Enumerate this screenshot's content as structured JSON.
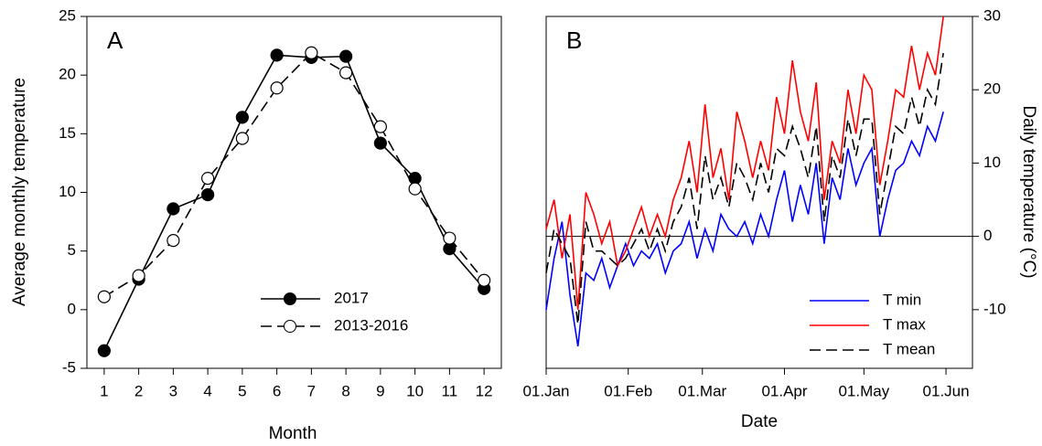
{
  "chart_data": [
    {
      "type": "line",
      "annotation": "A",
      "xlabel": "Month",
      "ylabel": "Average monthly temperature",
      "x": [
        1,
        2,
        3,
        4,
        5,
        6,
        7,
        8,
        9,
        10,
        11,
        12
      ],
      "xlim": [
        0.5,
        12.5
      ],
      "xticks": [
        1,
        2,
        3,
        4,
        5,
        6,
        7,
        8,
        9,
        10,
        11,
        12
      ],
      "ylim": [
        -5,
        25
      ],
      "yticks": [
        -5,
        0,
        5,
        10,
        15,
        20,
        25
      ],
      "legend": "lower center",
      "series": [
        {
          "name": "2017",
          "color": "#000000",
          "linestyle": "solid",
          "marker": "filled-circle",
          "values": [
            -3.5,
            2.6,
            8.6,
            9.8,
            16.4,
            21.7,
            21.5,
            21.6,
            14.2,
            11.2,
            5.2,
            1.8
          ]
        },
        {
          "name": "2013-2016",
          "color": "#000000",
          "linestyle": "dashed",
          "marker": "open-circle",
          "values": [
            1.1,
            2.9,
            5.9,
            11.2,
            14.6,
            18.9,
            21.9,
            20.2,
            15.6,
            10.3,
            6.1,
            2.5
          ]
        }
      ]
    },
    {
      "type": "line",
      "annotation": "B",
      "xlabel": "Date",
      "y2label": "Daily temperature (°C)",
      "x": [
        1,
        4,
        7,
        10,
        13,
        16,
        19,
        22,
        25,
        28,
        31,
        34,
        37,
        40,
        43,
        46,
        49,
        52,
        55,
        58,
        61,
        64,
        67,
        70,
        73,
        76,
        79,
        82,
        85,
        88,
        91,
        94,
        97,
        100,
        103,
        106,
        109,
        112,
        115,
        118,
        121,
        124,
        127,
        130,
        133,
        136,
        139,
        142,
        145,
        148,
        151
      ],
      "xlim": [
        1,
        162
      ],
      "xticks": [
        {
          "value": 1,
          "label": "01.Jan"
        },
        {
          "value": 32,
          "label": "01.Feb"
        },
        {
          "value": 60,
          "label": "01.Mar"
        },
        {
          "value": 91,
          "label": "01.Apr"
        },
        {
          "value": 121,
          "label": "01.May"
        },
        {
          "value": 152,
          "label": "01.Jun"
        }
      ],
      "y2lim": [
        -18,
        30
      ],
      "y2ticks": [
        -10,
        0,
        10,
        20,
        30
      ],
      "zero_line": true,
      "legend": "lower right",
      "series": [
        {
          "name": "T min",
          "color": "#0000ff",
          "linestyle": "solid",
          "axis": "y2",
          "values": [
            -10,
            -3,
            2,
            -8,
            -15,
            -5,
            -6,
            -3,
            -7,
            -4,
            -1,
            -4,
            -2,
            -3,
            -1,
            -5,
            -2,
            -1,
            2,
            -3,
            1,
            -2,
            3,
            1,
            0,
            2,
            -1,
            3,
            0,
            5,
            9,
            2,
            7,
            3,
            10,
            -1,
            8,
            5,
            12,
            7,
            10,
            12,
            0,
            5,
            9,
            10,
            13,
            11,
            15,
            13,
            17
          ]
        },
        {
          "name": "T max",
          "color": "#ff0000",
          "linestyle": "solid",
          "axis": "y2",
          "values": [
            1,
            5,
            -3,
            3,
            -10,
            6,
            3,
            -1,
            2,
            -4,
            -2,
            1,
            4,
            0,
            3,
            0,
            5,
            8,
            13,
            6,
            18,
            8,
            12,
            5,
            17,
            13,
            8,
            13,
            9,
            19,
            14,
            24,
            17,
            13,
            21,
            5,
            13,
            10,
            20,
            14,
            22,
            20,
            7,
            13,
            20,
            19,
            26,
            20,
            25,
            22,
            30
          ]
        },
        {
          "name": "T mean",
          "color": "#000000",
          "linestyle": "dashed",
          "axis": "y2",
          "values": [
            -5,
            1,
            -1,
            -3,
            -12,
            2,
            -2,
            -2,
            -3,
            -4,
            -3,
            -1,
            1,
            -2,
            1,
            -2,
            2,
            4,
            8,
            1,
            11,
            5,
            8,
            4,
            10,
            8,
            5,
            10,
            6,
            12,
            11,
            15,
            12,
            8,
            15,
            2,
            11,
            8,
            16,
            11,
            16,
            16,
            3,
            9,
            15,
            14,
            19,
            15,
            20,
            18,
            25
          ]
        }
      ]
    }
  ]
}
